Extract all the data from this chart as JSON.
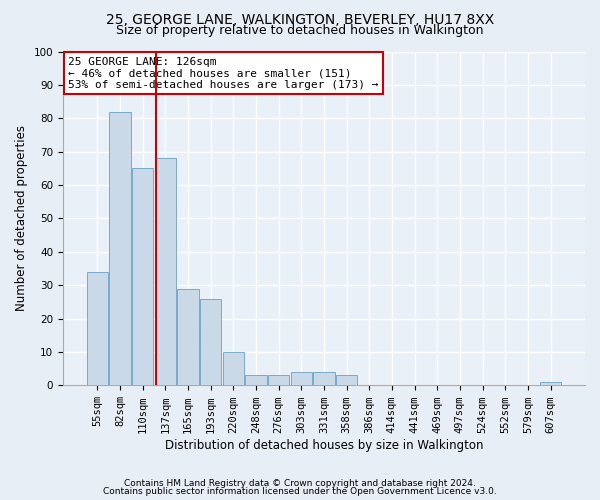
{
  "title1": "25, GEORGE LANE, WALKINGTON, BEVERLEY, HU17 8XX",
  "title2": "Size of property relative to detached houses in Walkington",
  "xlabel": "Distribution of detached houses by size in Walkington",
  "ylabel": "Number of detached properties",
  "footnote1": "Contains HM Land Registry data © Crown copyright and database right 2024.",
  "footnote2": "Contains public sector information licensed under the Open Government Licence v3.0.",
  "bin_labels": [
    "55sqm",
    "82sqm",
    "110sqm",
    "137sqm",
    "165sqm",
    "193sqm",
    "220sqm",
    "248sqm",
    "276sqm",
    "303sqm",
    "331sqm",
    "358sqm",
    "386sqm",
    "414sqm",
    "441sqm",
    "469sqm",
    "497sqm",
    "524sqm",
    "552sqm",
    "579sqm",
    "607sqm"
  ],
  "bar_values": [
    34,
    82,
    65,
    68,
    29,
    26,
    10,
    3,
    3,
    4,
    4,
    3,
    0,
    0,
    0,
    0,
    0,
    0,
    0,
    0,
    1
  ],
  "bar_color": "#c9d9e8",
  "bar_edge_color": "#7aaac8",
  "property_line_color": "#cc0000",
  "annotation_text": "25 GEORGE LANE: 126sqm\n← 46% of detached houses are smaller (151)\n53% of semi-detached houses are larger (173) →",
  "annotation_box_color": "#ffffff",
  "annotation_box_edge": "#cc0000",
  "ylim": [
    0,
    100
  ],
  "yticks": [
    0,
    10,
    20,
    30,
    40,
    50,
    60,
    70,
    80,
    90,
    100
  ],
  "bg_color": "#e8eef5",
  "plot_bg_color": "#eaf0f8",
  "grid_color": "#ffffff",
  "title1_fontsize": 10,
  "title2_fontsize": 9,
  "axis_label_fontsize": 8.5,
  "tick_fontsize": 7.5,
  "annot_fontsize": 8
}
